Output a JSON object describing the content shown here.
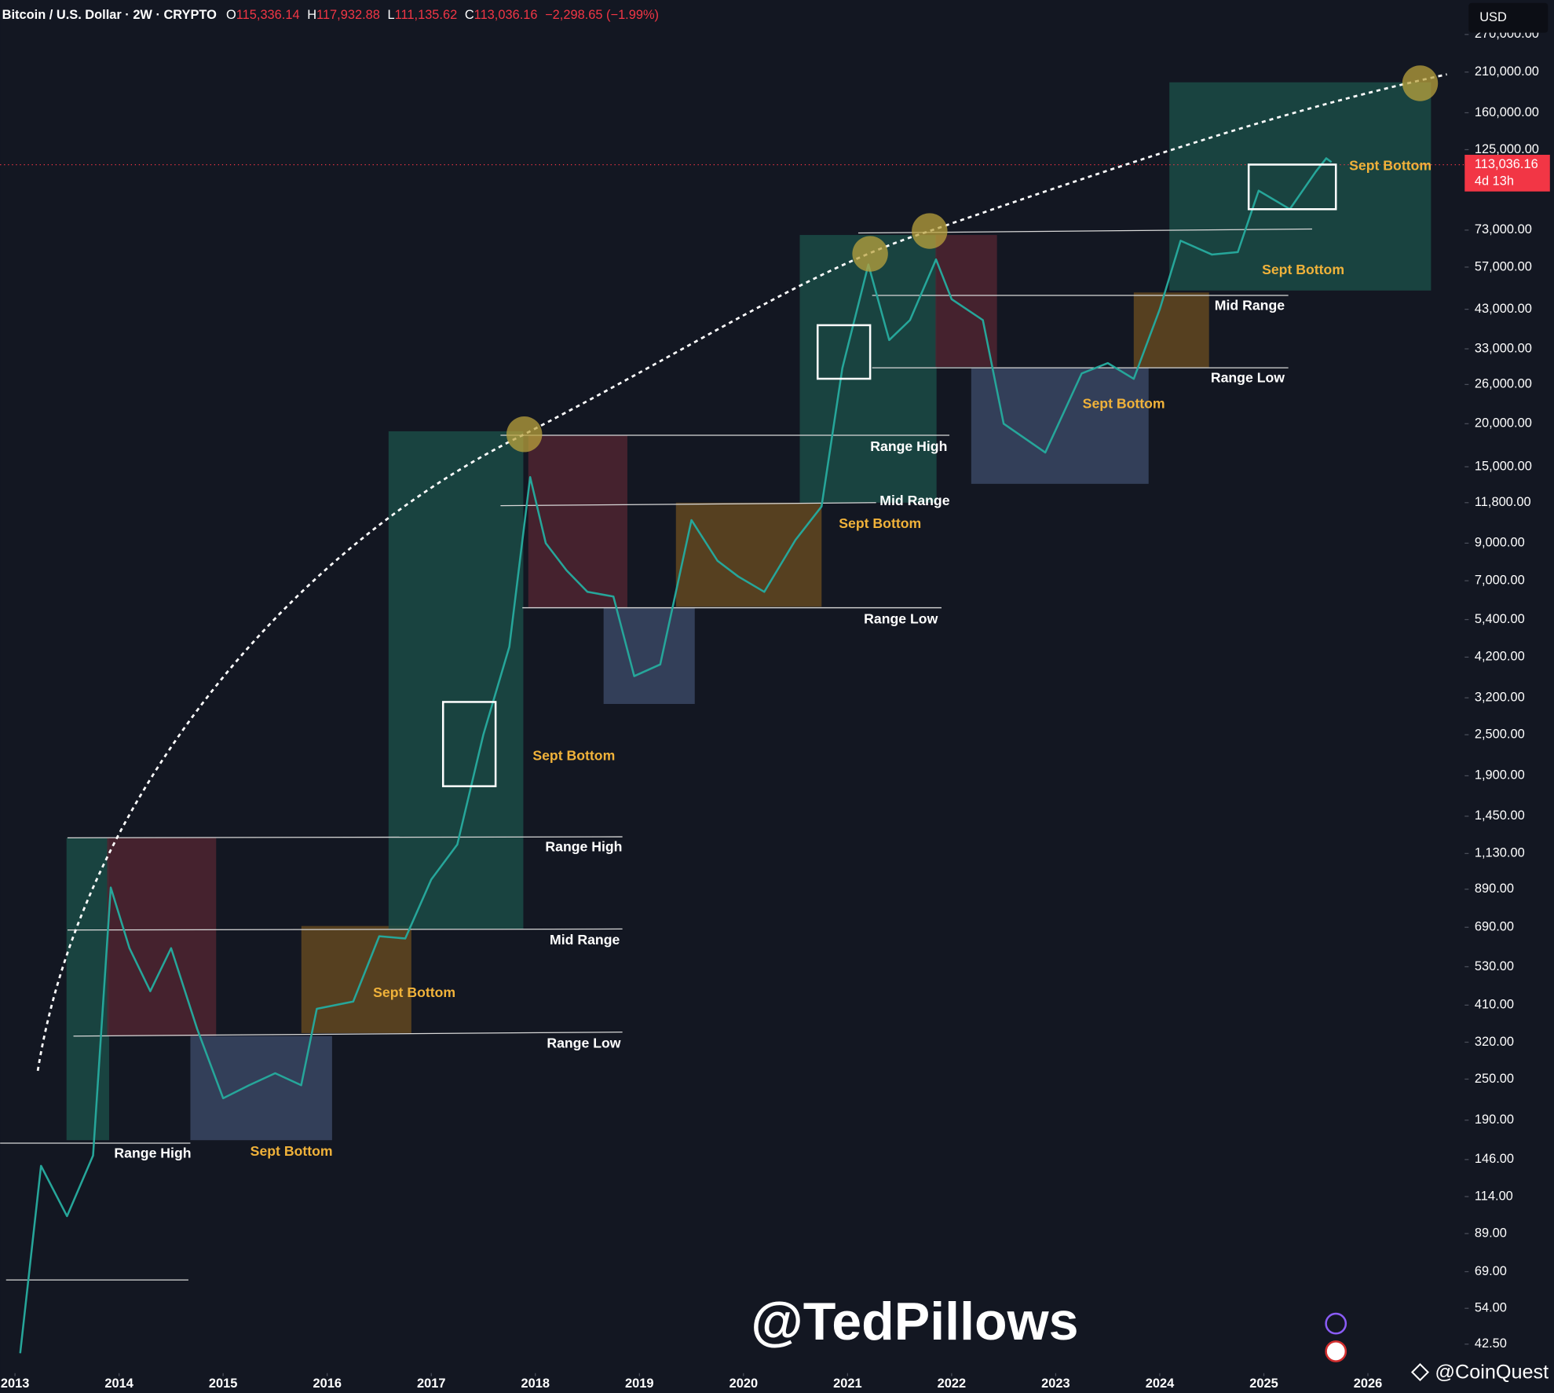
{
  "chart_data": {
    "type": "line",
    "title": "Bitcoin / U.S. Dollar · 2W · CRYPTO",
    "ohlc": [
      {
        "key": "O",
        "value": "115,336.14"
      },
      {
        "key": "H",
        "value": "117,932.88"
      },
      {
        "key": "L",
        "value": "111,135.62"
      },
      {
        "key": "C",
        "value": "113,036.16"
      }
    ],
    "change": "−2,298.65 (−1.99%)",
    "currency": "USD",
    "log_scale": true,
    "grid": false,
    "color": "#26a69a",
    "x": [
      2013.05,
      2013.25,
      2013.5,
      2013.75,
      2013.92,
      2014.1,
      2014.3,
      2014.5,
      2014.75,
      2015.0,
      2015.25,
      2015.5,
      2015.75,
      2015.9,
      2016.25,
      2016.5,
      2016.75,
      2017.0,
      2017.25,
      2017.5,
      2017.75,
      2017.95,
      2018.1,
      2018.3,
      2018.5,
      2018.75,
      2018.95,
      2019.2,
      2019.5,
      2019.75,
      2019.95,
      2020.2,
      2020.5,
      2020.75,
      2020.95,
      2021.2,
      2021.4,
      2021.6,
      2021.85,
      2022.0,
      2022.3,
      2022.5,
      2022.9,
      2023.25,
      2023.5,
      2023.75,
      2024.0,
      2024.2,
      2024.5,
      2024.75,
      2024.95,
      2025.25,
      2025.5,
      2025.6,
      2025.65
    ],
    "values": [
      40,
      140,
      100,
      150,
      900,
      600,
      450,
      600,
      350,
      220,
      240,
      260,
      240,
      400,
      420,
      650,
      640,
      950,
      1200,
      2500,
      4500,
      14000,
      9000,
      7500,
      6500,
      6300,
      3700,
      4000,
      10500,
      8000,
      7200,
      6500,
      9200,
      11500,
      29000,
      58000,
      35000,
      40000,
      60000,
      46000,
      40000,
      20000,
      16500,
      28000,
      30000,
      27000,
      43000,
      68000,
      62000,
      63000,
      95000,
      84000,
      108000,
      118000,
      115000
    ],
    "xlim": [
      2012.857,
      2026.93
    ],
    "xticks": [
      2013,
      2014,
      2015,
      2016,
      2017,
      2018,
      2019,
      2020,
      2021,
      2022,
      2023,
      2024,
      2025,
      2026
    ],
    "ylim": [
      35,
      340000
    ],
    "yticks": [
      {
        "value": 270000,
        "label": "270,000.00"
      },
      {
        "value": 210000,
        "label": "210,000.00"
      },
      {
        "value": 160000,
        "label": "160,000.00"
      },
      {
        "value": 125000,
        "label": "125,000.00"
      },
      {
        "value": 73000,
        "label": "73,000.00"
      },
      {
        "value": 57000,
        "label": "57,000.00"
      },
      {
        "value": 43000,
        "label": "43,000.00"
      },
      {
        "value": 33000,
        "label": "33,000.00"
      },
      {
        "value": 26000,
        "label": "26,000.00"
      },
      {
        "value": 20000,
        "label": "20,000.00"
      },
      {
        "value": 15000,
        "label": "15,000.00"
      },
      {
        "value": 11800,
        "label": "11,800.00"
      },
      {
        "value": 9000,
        "label": "9,000.00"
      },
      {
        "value": 7000,
        "label": "7,000.00"
      },
      {
        "value": 5400,
        "label": "5,400.00"
      },
      {
        "value": 4200,
        "label": "4,200.00"
      },
      {
        "value": 3200,
        "label": "3,200.00"
      },
      {
        "value": 2500,
        "label": "2,500.00"
      },
      {
        "value": 1900,
        "label": "1,900.00"
      },
      {
        "value": 1450,
        "label": "1,450.00"
      },
      {
        "value": 1130,
        "label": "1,130.00"
      },
      {
        "value": 890,
        "label": "890.00"
      },
      {
        "value": 690,
        "label": "690.00"
      },
      {
        "value": 530,
        "label": "530.00"
      },
      {
        "value": 410,
        "label": "410.00"
      },
      {
        "value": 320,
        "label": "320.00"
      },
      {
        "value": 250,
        "label": "250.00"
      },
      {
        "value": 190,
        "label": "190.00"
      },
      {
        "value": 146,
        "label": "146.00"
      },
      {
        "value": 114,
        "label": "114.00"
      },
      {
        "value": 89,
        "label": "89.00"
      },
      {
        "value": 69,
        "label": "69.00"
      },
      {
        "value": 54,
        "label": "54.00"
      },
      {
        "value": 42.5,
        "label": "42.50"
      }
    ],
    "last_price": {
      "value": 113036.16,
      "label": "113,036.16",
      "color": "#f23645"
    },
    "countdown": "4d 13h",
    "annotations": [
      "Range High",
      "Sept Bottom",
      "Range Low",
      "Mid Range",
      "Range High",
      "Sept Bottom",
      "Sept Bottom",
      "Range Low",
      "Mid Range",
      "Sept Bottom",
      "Range High",
      "Sept Bottom",
      "Range Low",
      "Mid Range",
      "Sept Bottom",
      "Sept Bottom"
    ],
    "watermarks": [
      "@TedPillows",
      "@CoinQuest"
    ]
  }
}
